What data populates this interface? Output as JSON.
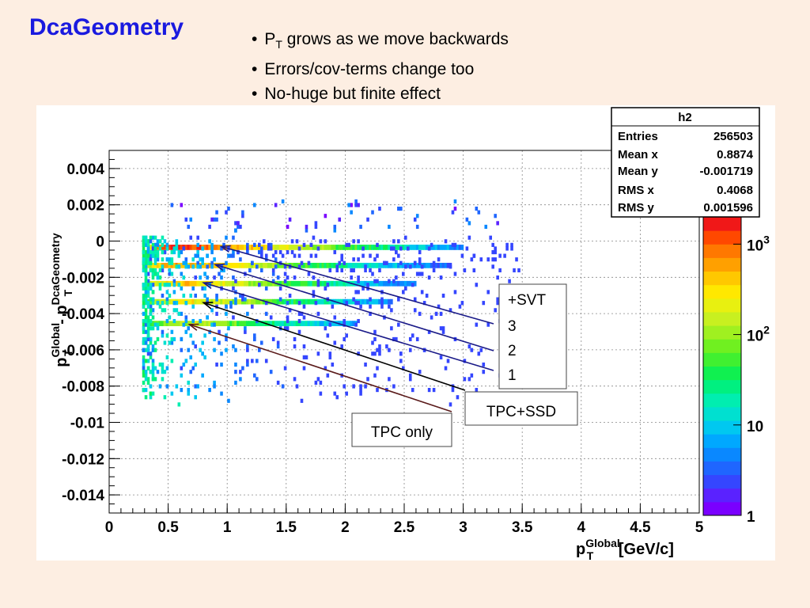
{
  "slide": {
    "title": "DcaGeometry",
    "bullets": [
      {
        "prefix": "P",
        "sub": "T",
        "text": " grows as we move backwards"
      },
      {
        "prefix": "",
        "sub": "",
        "text": "Errors/cov-terms change too"
      },
      {
        "prefix": "",
        "sub": "",
        "text": "No-huge but finite effect"
      }
    ]
  },
  "chart_data": {
    "type": "heatmap",
    "histogram_name": "h2",
    "xlim": [
      0,
      5
    ],
    "ylim": [
      -0.015,
      0.005
    ],
    "x_ticks": [
      "0",
      "0.5",
      "1",
      "1.5",
      "2",
      "2.5",
      "3",
      "3.5",
      "4",
      "4.5",
      "5"
    ],
    "y_ticks": [
      "0.004",
      "0.002",
      "0",
      "-0.002",
      "-0.004",
      "-0.006",
      "-0.008",
      "-0.01",
      "-0.012",
      "-0.014"
    ],
    "xlabel": {
      "base": "p",
      "sup": "Global",
      "sub": "T",
      "unit": " [GeV/c]"
    },
    "ylabel": {
      "base1": "p",
      "sup1": "Global",
      "sub1": "T",
      "mid": " - p",
      "sup2": "DcaGeometry",
      "sub2": "T"
    },
    "grid": true,
    "color_scale": "log",
    "z_ticks": [
      {
        "base": "1",
        "exp": "",
        "value": 1
      },
      {
        "base": "10",
        "exp": "",
        "value": 10
      },
      {
        "base": "10",
        "exp": "2",
        "value": 100
      },
      {
        "base": "10",
        "exp": "3",
        "value": 1000
      }
    ],
    "z_range": [
      1,
      2000
    ],
    "palette": [
      "#7a00ff",
      "#5a22ff",
      "#3546ff",
      "#1f66ff",
      "#0a88ff",
      "#00a8ff",
      "#00c8f0",
      "#00e0d0",
      "#00eeb0",
      "#00f080",
      "#10f050",
      "#40f030",
      "#70f020",
      "#a0f020",
      "#c8f020",
      "#e8f010",
      "#ffe800",
      "#ffc800",
      "#ffa000",
      "#ff7800",
      "#ff4800",
      "#f01818"
    ],
    "bands": [
      {
        "label": "+SVT",
        "y": -0.0003,
        "x_min": 0.3,
        "x_max": 3.0,
        "peak_x": 0.6,
        "peak_count": 1600
      },
      {
        "label": "3",
        "y": -0.0013,
        "x_min": 0.3,
        "x_max": 2.9,
        "peak_x": 0.6,
        "peak_count": 700
      },
      {
        "label": "2",
        "y": -0.0023,
        "x_min": 0.3,
        "x_max": 2.6,
        "peak_x": 0.65,
        "peak_count": 450
      },
      {
        "label": "1",
        "y": -0.0033,
        "x_min": 0.3,
        "x_max": 2.4,
        "peak_x": 0.7,
        "peak_count": 300
      },
      {
        "label": "TPC+SSD",
        "y": -0.0045,
        "x_min": 0.3,
        "x_max": 2.1,
        "peak_x": 0.7,
        "peak_count": 150
      }
    ],
    "stats": {
      "title": "h2",
      "rows": [
        {
          "label": "Entries",
          "value": "256503"
        },
        {
          "label": "Mean x",
          "value": "0.8874"
        },
        {
          "label": "Mean y",
          "value": "-0.001719"
        },
        {
          "label": "RMS x",
          "value": "0.4068"
        },
        {
          "label": "RMS y",
          "value": "0.001596"
        }
      ]
    },
    "annotations": {
      "svt_box": [
        "+SVT",
        "3",
        "2",
        "1"
      ],
      "ssd_box": "TPC+SSD",
      "tpc_box": "TPC only"
    },
    "arrows": [
      {
        "to": [
          0.95,
          -0.0003
        ],
        "color": "#1a1a88"
      },
      {
        "to": [
          0.9,
          -0.0013
        ],
        "color": "#1a1a88"
      },
      {
        "to": [
          0.8,
          -0.0023
        ],
        "color": "#1a1a88"
      },
      {
        "to": [
          0.8,
          -0.0034
        ],
        "color": "#000000"
      },
      {
        "to": [
          0.68,
          -0.0046
        ],
        "color": "#5a1a1a"
      }
    ]
  }
}
